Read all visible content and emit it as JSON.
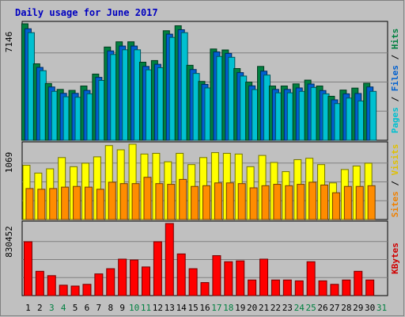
{
  "chart_data": {
    "title": "Daily usage for June 2017",
    "type": "bar",
    "days": [
      1,
      2,
      3,
      4,
      5,
      6,
      7,
      8,
      9,
      10,
      11,
      12,
      13,
      14,
      15,
      16,
      17,
      18,
      19,
      20,
      21,
      22,
      23,
      24,
      25,
      26,
      27,
      28,
      29,
      30,
      31
    ],
    "weekend_days": [
      3,
      4,
      10,
      11,
      17,
      18,
      24,
      25,
      31
    ],
    "panels": [
      {
        "id": "hits-files-pages",
        "max_label": "7146",
        "ylim": [
          0,
          7146
        ],
        "legend": [
          {
            "text": "Pages",
            "color": "#00c0d0"
          },
          {
            "text": " / ",
            "color": "#000000"
          },
          {
            "text": "Files",
            "color": "#0060d0"
          },
          {
            "text": " / ",
            "color": "#000000"
          },
          {
            "text": "Hits",
            "color": "#008040"
          }
        ],
        "series": [
          {
            "role": "hits",
            "color": "#008040",
            "values": [
              7146,
              4690,
              3480,
              3120,
              3060,
              3330,
              4060,
              5720,
              6040,
              6040,
              4790,
              4890,
              6720,
              7025,
              4600,
              3610,
              5600,
              5540,
              4400,
              3570,
              4530,
              3330,
              3330,
              3460,
              3690,
              3330,
              2700,
              3080,
              3200,
              3500,
              0
            ]
          },
          {
            "role": "files",
            "color": "#0060d0",
            "values": [
              6840,
              4470,
              3270,
              2880,
              2880,
              3060,
              3860,
              5480,
              5780,
              5780,
              4530,
              4660,
              6510,
              6780,
              4340,
              3430,
              5420,
              5330,
              4150,
              3340,
              4240,
              3120,
              3120,
              3210,
              3450,
              3050,
              2480,
              2850,
              2870,
              3270,
              0
            ]
          },
          {
            "role": "pages",
            "color": "#00c0d0",
            "values": [
              6600,
              4270,
              3000,
              2670,
              2640,
              2850,
              3670,
              5260,
              5550,
              5550,
              4320,
              4450,
              6310,
              6600,
              4100,
              3210,
              5140,
              5090,
              3940,
              3110,
              4000,
              2910,
              2910,
              3000,
              3240,
              2850,
              2250,
              2590,
              2410,
              3000,
              0
            ]
          }
        ]
      },
      {
        "id": "visits-sites",
        "max_label": "1069",
        "ylim": [
          0,
          1069
        ],
        "legend": [
          {
            "text": "Sites",
            "color": "#f08000"
          },
          {
            "text": " / ",
            "color": "#000000"
          },
          {
            "text": "Visits",
            "color": "#e0c000"
          }
        ],
        "series": [
          {
            "role": "visits",
            "color": "#ffff00",
            "values": [
              770,
              660,
              720,
              880,
              750,
              800,
              890,
              1050,
              990,
              1069,
              930,
              940,
              820,
              940,
              780,
              880,
              950,
              940,
              930,
              750,
              910,
              810,
              680,
              850,
              870,
              780,
              520,
              710,
              760,
              800,
              0
            ]
          },
          {
            "role": "sites",
            "color": "#ff8c00",
            "values": [
              440,
              430,
              440,
              460,
              470,
              460,
              430,
              530,
              510,
              510,
              600,
              510,
              500,
              570,
              470,
              480,
              520,
              520,
              510,
              450,
              480,
              500,
              480,
              500,
              530,
              490,
              380,
              470,
              470,
              480,
              0
            ]
          }
        ]
      },
      {
        "id": "kbytes",
        "max_label": "830452",
        "ylim": [
          0,
          830452
        ],
        "legend": [
          {
            "text": "KBytes",
            "color": "#d00000"
          }
        ],
        "series": [
          {
            "role": "kbytes",
            "color": "#ff0000",
            "values": [
              620000,
              280000,
              230000,
              120000,
              110000,
              130000,
              250000,
              310000,
              420000,
              410000,
              330000,
              620000,
              830452,
              480000,
              310000,
              150000,
              460000,
              390000,
              400000,
              180000,
              420000,
              180000,
              180000,
              170000,
              390000,
              170000,
              130000,
              180000,
              280000,
              180000,
              0
            ]
          }
        ]
      }
    ]
  }
}
